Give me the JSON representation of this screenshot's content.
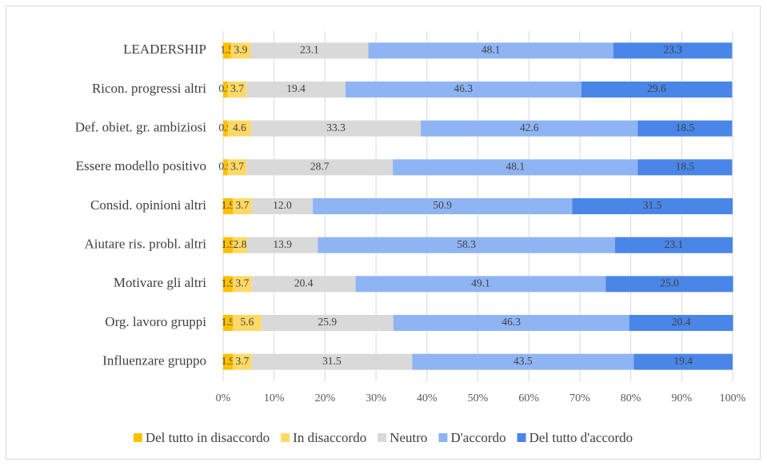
{
  "chart_data": {
    "type": "stacked_barh",
    "categories": [
      "LEADERSHIP",
      "Ricon. progressi altri",
      "Def. obiet. gr. ambiziosi",
      "Essere modello positivo",
      "Consid. opinioni altri",
      "Aiutare ris. probl. altri",
      "Motivare gli altri",
      "Org. lavoro gruppi",
      "Influenzare gruppo"
    ],
    "series": [
      {
        "name": "Del tutto in disaccordo",
        "color": "#FFC000",
        "values": [
          1.5,
          0.9,
          0.9,
          0.9,
          1.9,
          1.9,
          1.9,
          1.9,
          1.9
        ]
      },
      {
        "name": "In disaccordo",
        "color": "#FFD966",
        "values": [
          3.9,
          3.7,
          4.6,
          3.7,
          3.7,
          2.8,
          3.7,
          5.6,
          3.7
        ]
      },
      {
        "name": "Neutro",
        "color": "#D9D9D9",
        "values": [
          23.1,
          19.4,
          33.3,
          28.7,
          12,
          13.9,
          20.4,
          25.9,
          31.5
        ],
        "value_labels": [
          "23.1",
          "19.4",
          "33.3",
          "28.7",
          "12.0",
          "13.9",
          "20.4",
          "25.9",
          "31.5"
        ]
      },
      {
        "name": "D'accordo",
        "color": "#8FB4F4",
        "values": [
          48.1,
          46.3,
          42.6,
          48.1,
          50.9,
          58.3,
          49.1,
          46.3,
          43.5
        ]
      },
      {
        "name": "Del tutto d'accordo",
        "color": "#4A86E8",
        "values": [
          23.3,
          29.6,
          18.5,
          18.5,
          31.5,
          23.1,
          25,
          20.4,
          19.4
        ],
        "value_labels": [
          "23.3",
          "29.6",
          "18.5",
          "18.5",
          "31.5",
          "23.1",
          "25.0",
          "20.4",
          "19.4"
        ]
      }
    ],
    "xlim": [
      0,
      100
    ],
    "xticks": [
      {
        "value": 0,
        "label": "0%"
      },
      {
        "value": 10,
        "label": "10%"
      },
      {
        "value": 20,
        "label": "20%"
      },
      {
        "value": 30,
        "label": "30%"
      },
      {
        "value": 40,
        "label": "40%"
      },
      {
        "value": 50,
        "label": "50%"
      },
      {
        "value": 60,
        "label": "60%"
      },
      {
        "value": 70,
        "label": "70%"
      },
      {
        "value": 80,
        "label": "80%"
      },
      {
        "value": 90,
        "label": "90%"
      },
      {
        "value": 100,
        "label": "100%"
      }
    ],
    "grid": true,
    "legend": "bottom"
  }
}
